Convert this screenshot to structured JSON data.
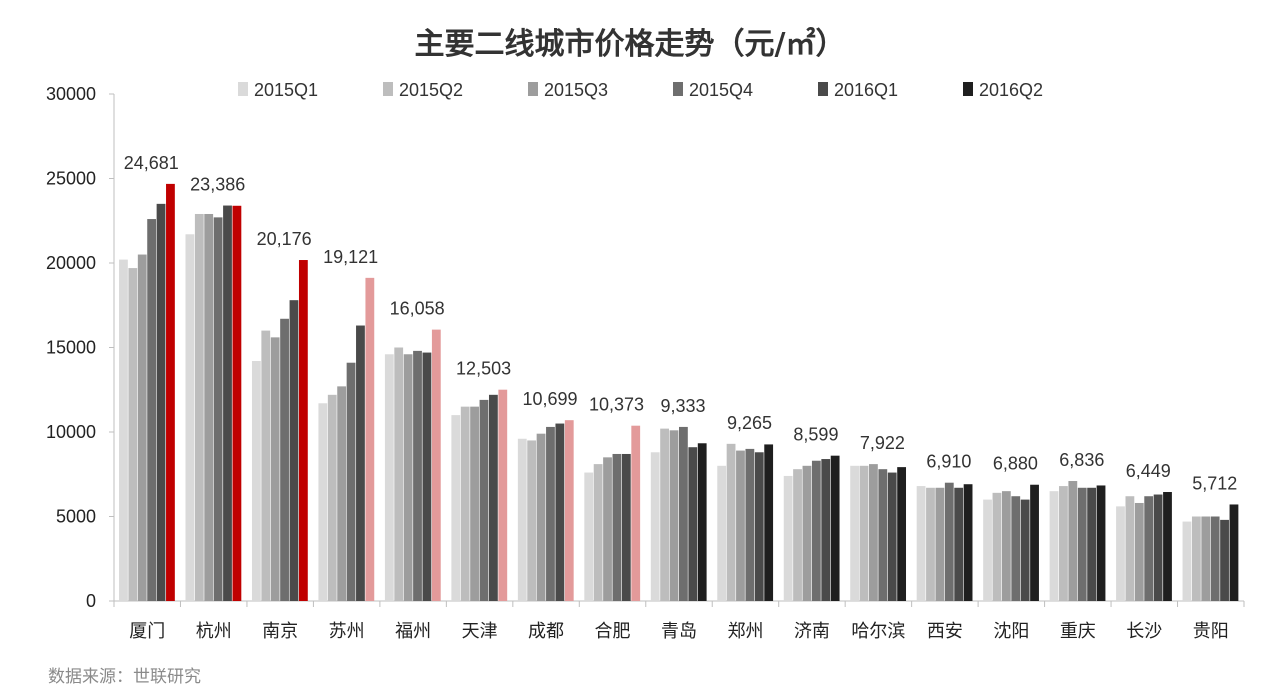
{
  "chart_data": {
    "type": "bar",
    "title": "主要二线城市价格走势（元/㎡）",
    "categories": [
      "厦门",
      "杭州",
      "南京",
      "苏州",
      "福州",
      "天津",
      "成都",
      "合肥",
      "青岛",
      "郑州",
      "济南",
      "哈尔滨",
      "西安",
      "沈阳",
      "重庆",
      "长沙",
      "贵阳"
    ],
    "series": [
      {
        "name": "2015Q1",
        "color": "#dadada",
        "values": [
          20200,
          21700,
          14200,
          11700,
          14600,
          11000,
          9600,
          7600,
          8800,
          8000,
          7400,
          8000,
          6800,
          6000,
          6500,
          5600,
          4700
        ]
      },
      {
        "name": "2015Q2",
        "color": "#bdbdbd",
        "values": [
          19700,
          22900,
          16000,
          12200,
          15000,
          11500,
          9500,
          8100,
          10200,
          9300,
          7800,
          8000,
          6700,
          6400,
          6800,
          6200,
          5000
        ]
      },
      {
        "name": "2015Q3",
        "color": "#9d9d9d",
        "values": [
          20500,
          22900,
          15600,
          12700,
          14600,
          11500,
          9900,
          8500,
          10100,
          8900,
          8000,
          8100,
          6700,
          6500,
          7100,
          5800,
          5000
        ]
      },
      {
        "name": "2015Q4",
        "color": "#6e6e6e",
        "values": [
          22600,
          22700,
          16700,
          14100,
          14800,
          11900,
          10300,
          8700,
          10300,
          9000,
          8300,
          7800,
          7000,
          6200,
          6700,
          6200,
          5000
        ]
      },
      {
        "name": "2016Q1",
        "color": "#4a4a4a",
        "values": [
          23500,
          23400,
          17800,
          16300,
          14700,
          12200,
          10500,
          8700,
          9100,
          8800,
          8400,
          7600,
          6700,
          6000,
          6700,
          6300,
          4800
        ]
      },
      {
        "name": "2016Q2",
        "color": "#1f1f1f",
        "values": [
          24681,
          23386,
          20176,
          19121,
          16058,
          12503,
          10699,
          10373,
          9333,
          9265,
          8599,
          7922,
          6910,
          6880,
          6836,
          6449,
          5712
        ]
      }
    ],
    "last_bar_colors": [
      "#c00000",
      "#c00000",
      "#c00000",
      "#e39a9a",
      "#e39a9a",
      "#e39a9a",
      "#e39a9a",
      "#e39a9a",
      "#1f1f1f",
      "#1f1f1f",
      "#1f1f1f",
      "#1f1f1f",
      "#1f1f1f",
      "#1f1f1f",
      "#1f1f1f",
      "#1f1f1f",
      "#1f1f1f"
    ],
    "data_labels": [
      "24,681",
      "23,386",
      "20,176",
      "19,121",
      "16,058",
      "12,503",
      "10,699",
      "10,373",
      "9,333",
      "9,265",
      "8,599",
      "7,922",
      "6,910",
      "6,880",
      "6,836",
      "6,449",
      "5,712"
    ],
    "y_ticks": [
      "0",
      "5000",
      "10000",
      "15000",
      "20000",
      "25000",
      "30000"
    ],
    "ylim": [
      0,
      30000
    ],
    "grid": false,
    "legend_position": "top"
  },
  "source": "数据来源：世联研究"
}
